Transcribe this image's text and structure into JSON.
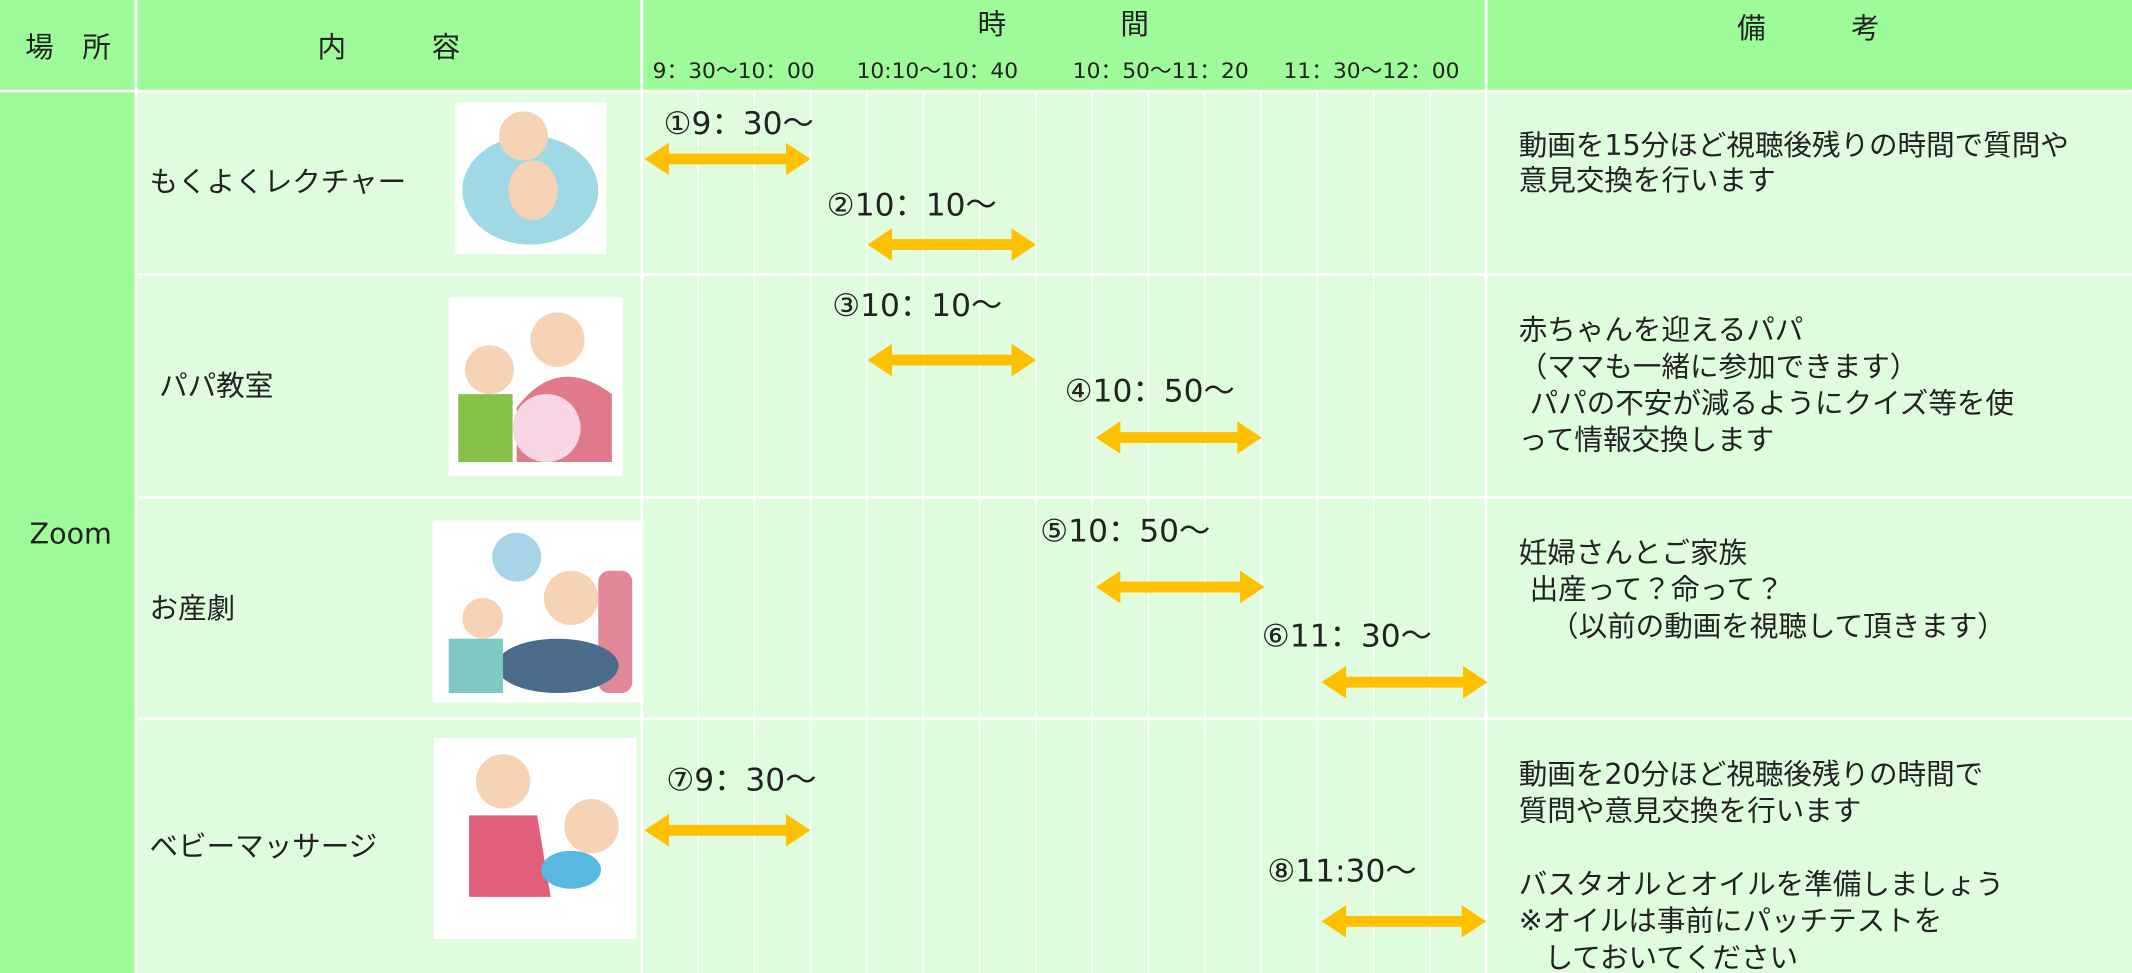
{
  "header": {
    "place": "場　所",
    "content": "内　　　容",
    "time": "時　　　　間",
    "note": "備　　　考",
    "time_slots": [
      "9：30〜10：00",
      "10:10〜10：40",
      "10：50〜11：20",
      "11：30〜12：00"
    ]
  },
  "place": "Zoom",
  "rows": [
    {
      "title": "もくよくレクチャー",
      "sessions": [
        "①9：30〜",
        "②10：10〜"
      ],
      "note": [
        "動画を15分ほど視聴後残りの時間で質問や",
        "意見交換を行います"
      ]
    },
    {
      "title": "パパ教室",
      "sessions": [
        "③10：10〜",
        "④10：50〜"
      ],
      "note": [
        "赤ちゃんを迎えるパパ",
        "（ママも一緒に参加できます）",
        "パパの不安が減るようにクイズ等を使",
        "って情報交換します"
      ]
    },
    {
      "title": "お産劇",
      "sessions": [
        "⑤10：50〜",
        "⑥11：30〜"
      ],
      "note": [
        "妊婦さんとご家族",
        "出産って？命って？",
        "（以前の動画を視聴して頂きます）"
      ]
    },
    {
      "title": "ベビーマッサージ",
      "sessions": [
        "⑦9：30〜",
        "⑧11:30〜"
      ],
      "note": [
        "動画を20分ほど視聴後残りの時間で",
        "質問や意見交換を行います",
        "バスタオルとオイルを準備しましょう",
        "※オイルは事前にパッチテストを",
        "しておいてください"
      ]
    }
  ]
}
